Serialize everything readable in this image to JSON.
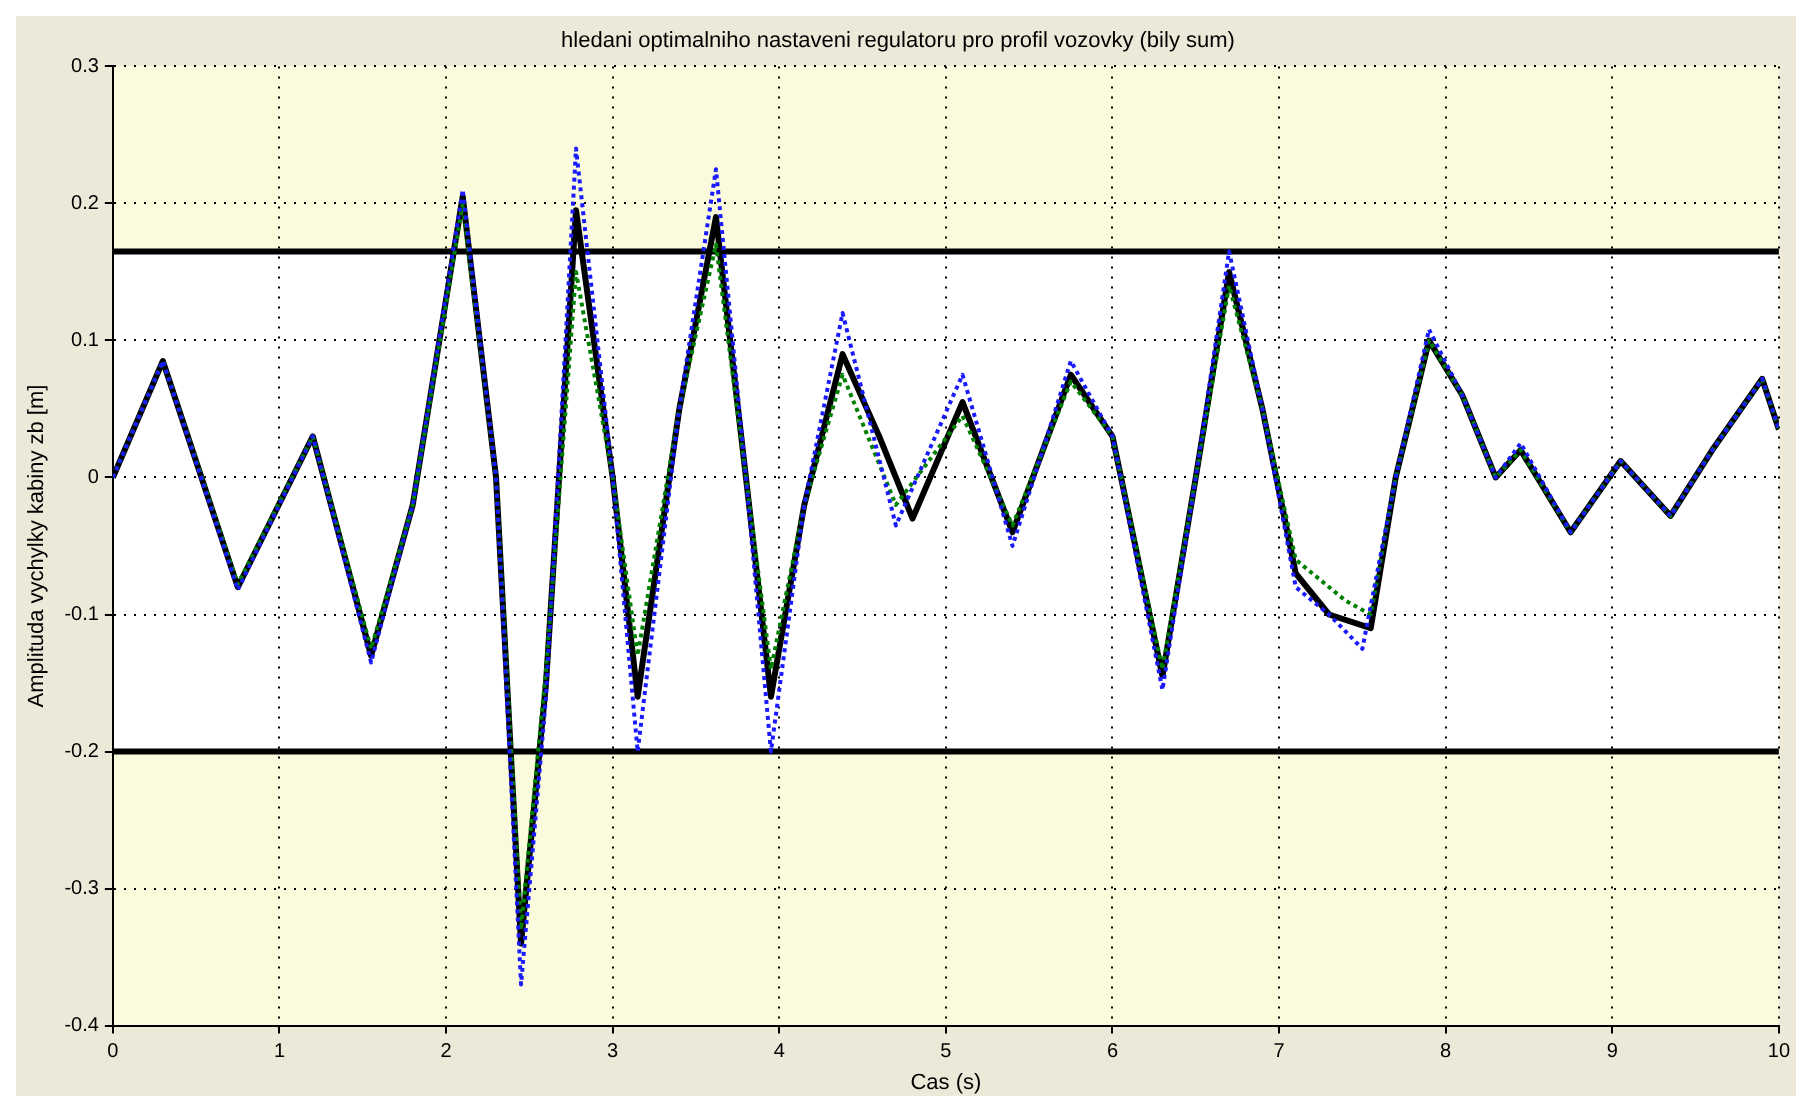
{
  "chart_data": {
    "type": "line",
    "title": "hledani optimalniho nastaveni regulatoru pro profil vozovky (bily sum)",
    "xlabel": "Cas (s)",
    "ylabel": "Amplituda vychylky kabiny zb [m]",
    "xlim": [
      0,
      10
    ],
    "xticks": [
      0,
      1,
      2,
      3,
      4,
      5,
      6,
      7,
      8,
      9,
      10
    ],
    "ylim": [
      -0.4,
      0.3
    ],
    "yticks": [
      -0.4,
      -0.3,
      -0.2,
      -0.1,
      0,
      0.1,
      0.2,
      0.3
    ],
    "grid": true,
    "legend": false,
    "marker": "none",
    "bands": [
      {
        "axis": "y",
        "from": 0.165,
        "to": 0.3,
        "color": "#fafadc"
      },
      {
        "axis": "y",
        "from": -0.4,
        "to": -0.2,
        "color": "#fafadc"
      }
    ],
    "ref_lines": [
      {
        "axis": "y",
        "value": 0.165,
        "color": "#000000"
      },
      {
        "axis": "y",
        "value": -0.2,
        "color": "#000000"
      }
    ],
    "series": [
      {
        "color": "#1a1aff",
        "line_style": "dotted",
        "x": [
          0,
          0.3,
          0.75,
          1.2,
          1.55,
          1.8,
          2.1,
          2.3,
          2.45,
          2.6,
          2.78,
          3.0,
          3.15,
          3.4,
          3.62,
          3.8,
          3.95,
          4.15,
          4.38,
          4.7,
          5.1,
          5.4,
          5.75,
          6.0,
          6.3,
          6.5,
          6.7,
          6.9,
          7.1,
          7.3,
          7.5,
          7.7,
          7.9,
          8.1,
          8.3,
          8.45,
          8.75,
          9.05,
          9.35,
          9.6,
          9.9,
          10
        ],
        "values": [
          0,
          0.085,
          -0.082,
          0.03,
          -0.135,
          -0.02,
          0.21,
          0.0,
          -0.37,
          -0.16,
          0.24,
          0.0,
          -0.2,
          0.05,
          0.225,
          0.0,
          -0.2,
          -0.02,
          0.12,
          -0.035,
          0.075,
          -0.05,
          0.085,
          0.03,
          -0.155,
          0.0,
          0.165,
          0.05,
          -0.08,
          -0.1,
          -0.125,
          0.0,
          0.108,
          0.06,
          0.0,
          0.025,
          -0.04,
          0.012,
          -0.028,
          0.02,
          0.072,
          0.035
        ]
      },
      {
        "color": "#008000",
        "line_style": "dotted",
        "x": [
          0,
          0.3,
          0.75,
          1.2,
          1.55,
          1.8,
          2.1,
          2.3,
          2.45,
          2.6,
          2.78,
          3.0,
          3.15,
          3.4,
          3.62,
          3.8,
          3.95,
          4.15,
          4.38,
          4.7,
          5.1,
          5.4,
          5.75,
          6.0,
          6.3,
          6.5,
          6.7,
          6.9,
          7.1,
          7.4,
          7.55,
          7.7,
          7.9,
          8.1,
          8.3,
          8.45,
          8.75,
          9.05,
          9.35,
          9.6,
          9.9,
          10
        ],
        "values": [
          0,
          0.085,
          -0.078,
          0.03,
          -0.125,
          -0.02,
          0.2,
          0.0,
          -0.33,
          -0.14,
          0.15,
          0.0,
          -0.13,
          0.05,
          0.17,
          0.0,
          -0.14,
          -0.02,
          0.075,
          -0.02,
          0.045,
          -0.035,
          0.07,
          0.03,
          -0.14,
          0.0,
          0.14,
          0.05,
          -0.06,
          -0.09,
          -0.1,
          0.0,
          0.1,
          0.06,
          0.0,
          0.02,
          -0.04,
          0.012,
          -0.028,
          0.02,
          0.072,
          0.035
        ]
      },
      {
        "color": "#000000",
        "line_style": "solid",
        "x": [
          0,
          0.3,
          0.75,
          1.2,
          1.55,
          1.8,
          2.1,
          2.3,
          2.45,
          2.6,
          2.78,
          3.0,
          3.15,
          3.4,
          3.62,
          3.8,
          3.95,
          4.15,
          4.38,
          4.6,
          4.8,
          5.1,
          5.4,
          5.75,
          6.0,
          6.3,
          6.5,
          6.7,
          6.9,
          7.1,
          7.3,
          7.55,
          7.7,
          7.9,
          8.1,
          8.3,
          8.45,
          8.75,
          9.05,
          9.35,
          9.6,
          9.9,
          10
        ],
        "values": [
          0,
          0.085,
          -0.08,
          0.03,
          -0.13,
          -0.02,
          0.205,
          0.0,
          -0.34,
          -0.15,
          0.195,
          0.0,
          -0.16,
          0.05,
          0.19,
          0.0,
          -0.16,
          -0.02,
          0.09,
          0.03,
          -0.03,
          0.055,
          -0.04,
          0.075,
          0.03,
          -0.145,
          0.0,
          0.15,
          0.05,
          -0.07,
          -0.1,
          -0.11,
          0.0,
          0.1,
          0.06,
          0.0,
          0.02,
          -0.04,
          0.012,
          -0.028,
          0.02,
          0.072,
          0.035
        ]
      }
    ]
  }
}
